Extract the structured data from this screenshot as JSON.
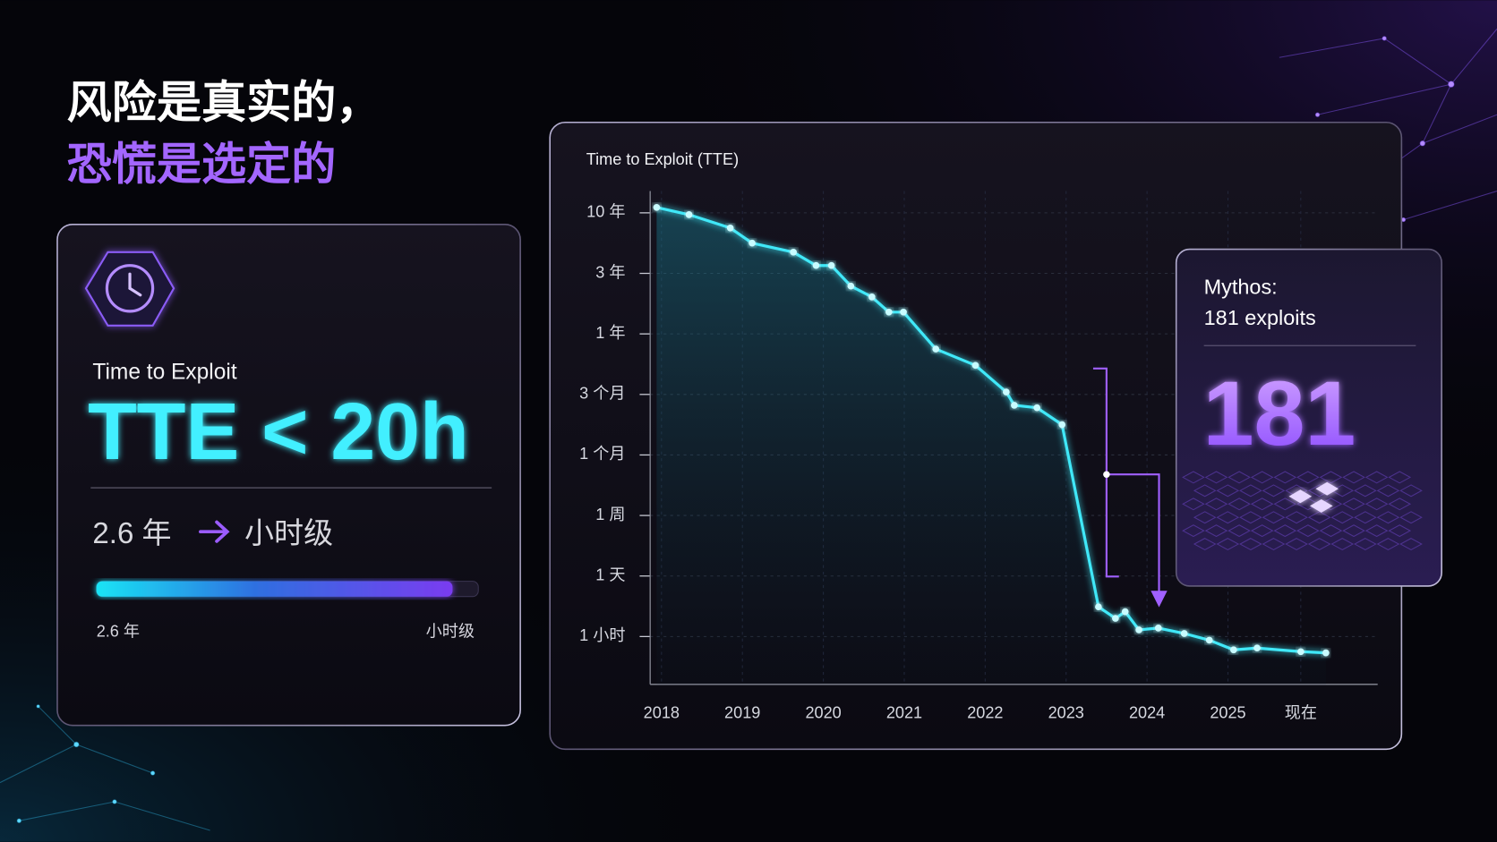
{
  "headline": {
    "line1": "风险是真实的，",
    "line2": "恐慌是选定的"
  },
  "left_card": {
    "label": "Time to Exploit",
    "metric": "TTE < 20h",
    "from": "2.6 年",
    "to": "小时级",
    "bar_start": "2.6 年",
    "bar_end": "小时级"
  },
  "chart_data": {
    "type": "line",
    "title": "Time to Exploit (TTE)",
    "x": [
      2017.94,
      2018.34,
      2018.85,
      2019.12,
      2019.63,
      2019.91,
      2020.1,
      2020.34,
      2020.6,
      2020.81,
      2020.99,
      2021.39,
      2021.88,
      2022.26,
      2022.36,
      2022.64,
      2022.95,
      2023.4,
      2023.61,
      2023.73,
      2023.9,
      2024.14,
      2024.46,
      2024.77,
      2025.07,
      2025.36,
      2025.9,
      2026.21
    ],
    "values": [
      7.09,
      6.97,
      6.75,
      6.5,
      6.35,
      6.13,
      6.13,
      5.79,
      5.61,
      5.36,
      5.36,
      4.75,
      4.48,
      4.04,
      3.82,
      3.78,
      3.5,
      0.49,
      0.3,
      0.41,
      0.11,
      0.14,
      0.05,
      -0.06,
      -0.22,
      -0.19,
      -0.25,
      -0.27
    ],
    "color": "#3fe8f8",
    "xlim": [
      2017.86,
      2026.85
    ],
    "xticks": [
      2018,
      2019,
      2020,
      2021,
      2022,
      2023,
      2024,
      2025,
      {
        "value": 2025.9,
        "label": "现在"
      }
    ],
    "ylim": [
      -0.79,
      7.36
    ],
    "yticks": [
      {
        "value": 7,
        "label": "10 年"
      },
      {
        "value": 6,
        "label": "3 年"
      },
      {
        "value": 5,
        "label": "1 年"
      },
      {
        "value": 4,
        "label": "3 个月"
      },
      {
        "value": 3,
        "label": "1 个月"
      },
      {
        "value": 2,
        "label": "1 周"
      },
      {
        "value": 1,
        "label": "1 天"
      },
      {
        "value": 0,
        "label": "1 小时"
      }
    ],
    "grid": true
  },
  "callout": {
    "heading": "Mythos:",
    "subheading": "181 exploits",
    "value": 181
  }
}
